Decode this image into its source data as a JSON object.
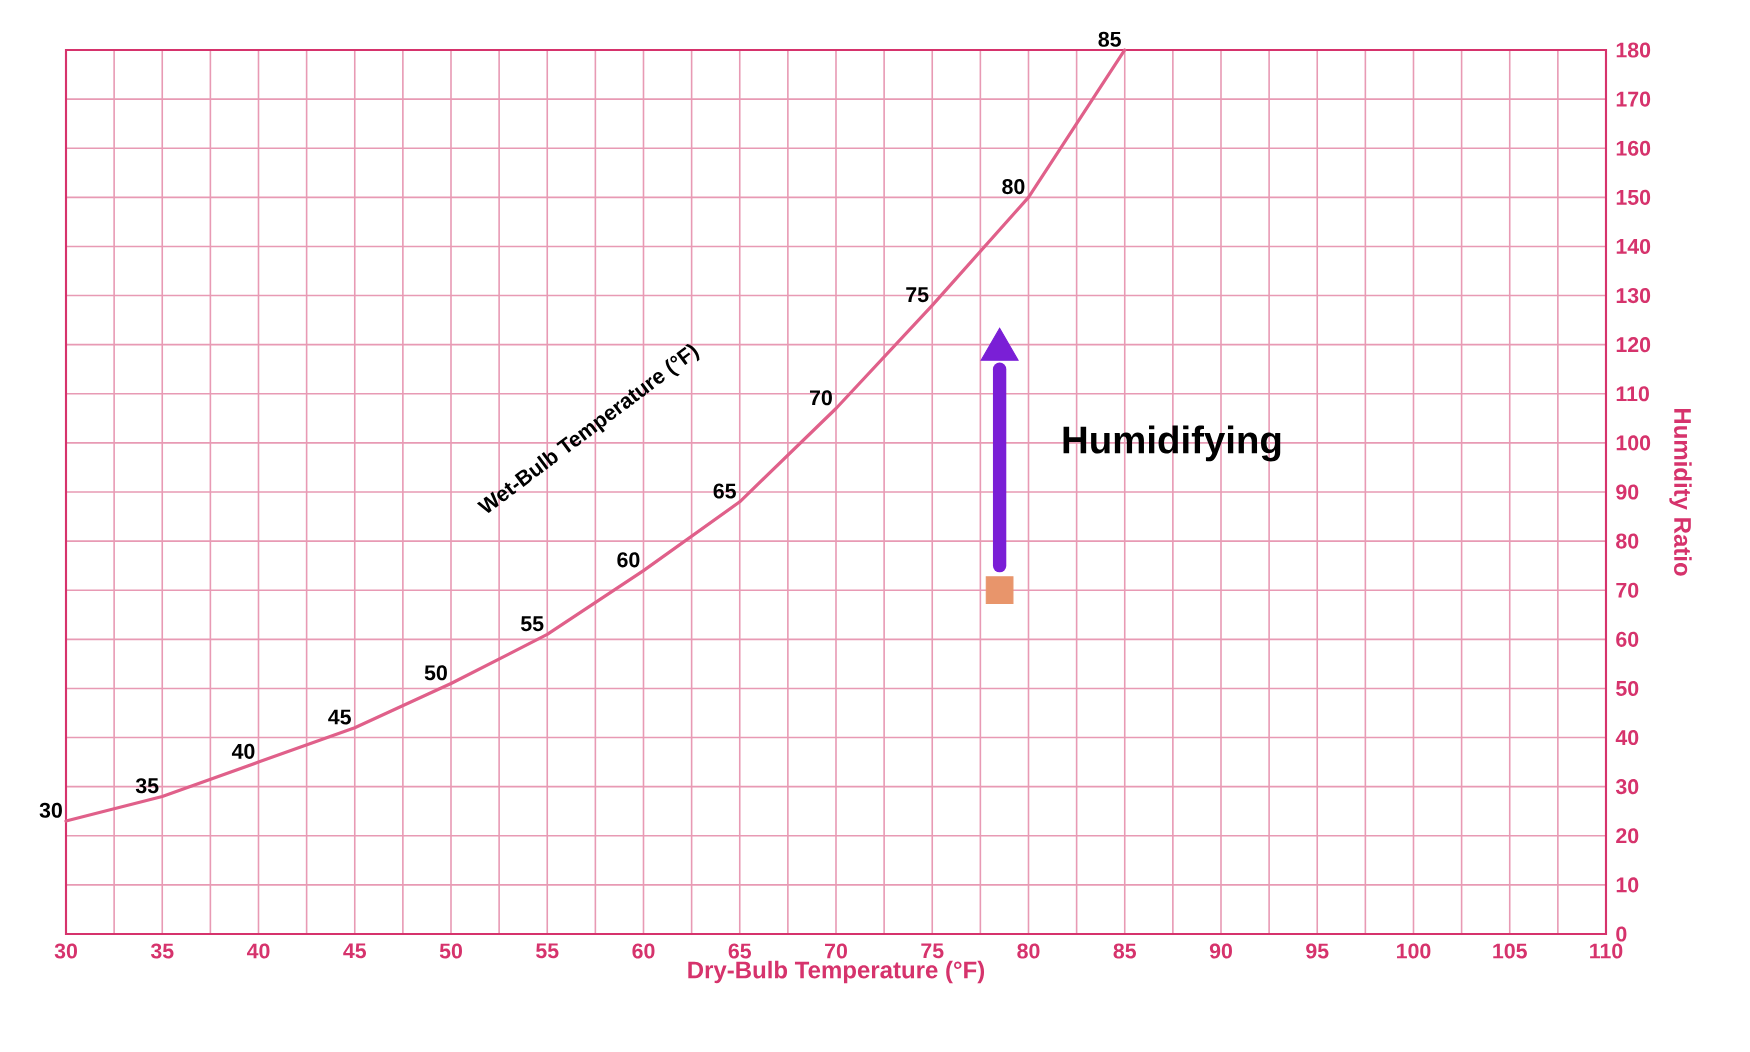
{
  "chart_data": {
    "type": "line",
    "xlabel": "Dry-Bulb Temperature (°F)",
    "ylabel": "Humidity Ratio",
    "xlim": [
      30,
      110
    ],
    "ylim": [
      0,
      180
    ],
    "xticks": [
      30,
      {
        "value": 32.5,
        "label": null
      },
      35,
      {
        "value": 37.5,
        "label": null
      },
      40,
      {
        "value": 42.5,
        "label": null
      },
      45,
      {
        "value": 47.5,
        "label": null
      },
      50,
      {
        "value": 52.5,
        "label": null
      },
      55,
      {
        "value": 57.5,
        "label": null
      },
      60,
      {
        "value": 62.5,
        "label": null
      },
      65,
      {
        "value": 67.5,
        "label": null
      },
      70,
      {
        "value": 72.5,
        "label": null
      },
      75,
      {
        "value": 77.5,
        "label": null
      },
      80,
      {
        "value": 82.5,
        "label": null
      },
      85,
      {
        "value": 87.5,
        "label": null
      },
      90,
      {
        "value": 92.5,
        "label": null
      },
      95,
      {
        "value": 97.5,
        "label": null
      },
      100,
      {
        "value": 102.5,
        "label": null
      },
      105,
      {
        "value": 107.5,
        "label": null
      },
      110
    ],
    "yticks": [
      0,
      10,
      20,
      30,
      40,
      50,
      60,
      70,
      80,
      90,
      100,
      110,
      120,
      130,
      140,
      150,
      160,
      170,
      180
    ],
    "grid": true,
    "series": [
      {
        "color": "#e0608a",
        "x": [
          30,
          35,
          40,
          45,
          50,
          55,
          60,
          65,
          70,
          75,
          80,
          85
        ],
        "values": [
          23,
          28,
          35,
          42,
          51,
          61,
          74,
          88,
          107,
          128,
          150,
          180
        ]
      },
      {
        "type": "line",
        "color": "#7a1fd6",
        "x": [
          78.5,
          78.5
        ],
        "values": [
          75,
          115
        ]
      },
      {
        "type": "scatter",
        "color": "#7a1fd6",
        "marker": "triangle",
        "x": [
          78.5
        ],
        "values": [
          119
        ]
      },
      {
        "type": "scatter",
        "color": "#e8956b",
        "marker": "square",
        "x": [
          78.5
        ],
        "values": [
          70
        ]
      }
    ],
    "annotations": [
      "Wet-Bulb Temperature (°F)",
      "**Humidifying**",
      {
        "text": "30",
        "x": 30,
        "y": 23
      },
      {
        "text": "35",
        "x": 35,
        "y": 28
      },
      {
        "text": "40",
        "x": 40,
        "y": 35
      },
      {
        "text": "45",
        "x": 45,
        "y": 42
      },
      {
        "text": "50",
        "x": 50,
        "y": 51
      },
      {
        "text": "55",
        "x": 55,
        "y": 61
      },
      {
        "text": "60",
        "x": 60,
        "y": 74
      },
      {
        "text": "65",
        "x": 65,
        "y": 88
      },
      {
        "text": "70",
        "x": 70,
        "y": 107
      },
      {
        "text": "75",
        "x": 75,
        "y": 128
      },
      {
        "text": "80",
        "x": 80,
        "y": 150
      },
      {
        "text": "85",
        "x": 85,
        "y": 180
      }
    ]
  }
}
